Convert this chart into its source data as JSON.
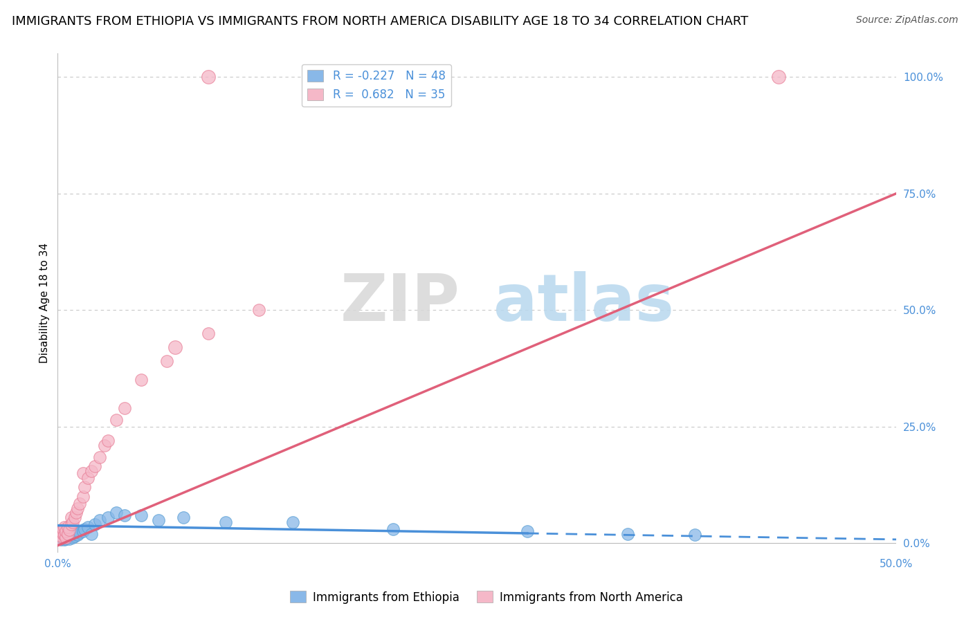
{
  "title": "IMMIGRANTS FROM ETHIOPIA VS IMMIGRANTS FROM NORTH AMERICA DISABILITY AGE 18 TO 34 CORRELATION CHART",
  "source": "Source: ZipAtlas.com",
  "ylabel": "Disability Age 18 to 34",
  "watermark_zip": "ZIP",
  "watermark_atlas": "atlas",
  "xlim": [
    0.0,
    0.5
  ],
  "ylim": [
    -0.02,
    1.05
  ],
  "yticks": [
    0.0,
    0.25,
    0.5,
    0.75,
    1.0
  ],
  "ytick_labels": [
    "0.0%",
    "25.0%",
    "50.0%",
    "75.0%",
    "100.0%"
  ],
  "xticks": [
    0.0,
    0.1,
    0.2,
    0.3,
    0.4,
    0.5
  ],
  "xtick_labels": [
    "0.0%",
    "",
    "",
    "",
    "",
    "50.0%"
  ],
  "series1_name": "Immigrants from Ethiopia",
  "series1_color": "#89b8e8",
  "series1_border": "#5a9fd4",
  "series1_R": -0.227,
  "series1_N": 48,
  "series2_name": "Immigrants from North America",
  "series2_color": "#f5b8c8",
  "series2_border": "#e88098",
  "series2_R": 0.682,
  "series2_N": 35,
  "blue_x": [
    0.001,
    0.001,
    0.001,
    0.002,
    0.002,
    0.002,
    0.002,
    0.003,
    0.003,
    0.003,
    0.004,
    0.004,
    0.004,
    0.005,
    0.005,
    0.005,
    0.006,
    0.006,
    0.006,
    0.007,
    0.007,
    0.008,
    0.008,
    0.009,
    0.009,
    0.01,
    0.01,
    0.011,
    0.012,
    0.013,
    0.015,
    0.016,
    0.018,
    0.02,
    0.022,
    0.025,
    0.03,
    0.035,
    0.04,
    0.05,
    0.06,
    0.075,
    0.1,
    0.14,
    0.2,
    0.28,
    0.34,
    0.38
  ],
  "blue_y": [
    0.01,
    0.015,
    0.02,
    0.008,
    0.012,
    0.018,
    0.025,
    0.01,
    0.015,
    0.022,
    0.008,
    0.018,
    0.025,
    0.01,
    0.018,
    0.028,
    0.012,
    0.02,
    0.03,
    0.01,
    0.022,
    0.015,
    0.025,
    0.012,
    0.02,
    0.015,
    0.025,
    0.02,
    0.018,
    0.022,
    0.025,
    0.03,
    0.035,
    0.02,
    0.04,
    0.05,
    0.055,
    0.065,
    0.06,
    0.06,
    0.05,
    0.055,
    0.045,
    0.045,
    0.03,
    0.025,
    0.02,
    0.018
  ],
  "pink_x": [
    0.001,
    0.001,
    0.002,
    0.002,
    0.003,
    0.003,
    0.004,
    0.004,
    0.005,
    0.005,
    0.006,
    0.006,
    0.007,
    0.008,
    0.008,
    0.009,
    0.01,
    0.011,
    0.012,
    0.013,
    0.015,
    0.015,
    0.016,
    0.018,
    0.02,
    0.022,
    0.025,
    0.028,
    0.03,
    0.035,
    0.04,
    0.05,
    0.065,
    0.09,
    0.12
  ],
  "pink_y": [
    0.01,
    0.018,
    0.015,
    0.025,
    0.02,
    0.03,
    0.018,
    0.035,
    0.012,
    0.025,
    0.02,
    0.035,
    0.028,
    0.04,
    0.055,
    0.045,
    0.055,
    0.065,
    0.075,
    0.085,
    0.1,
    0.15,
    0.12,
    0.14,
    0.155,
    0.165,
    0.185,
    0.21,
    0.22,
    0.265,
    0.29,
    0.35,
    0.39,
    0.45,
    0.5
  ],
  "pink_outlier1_x": [
    0.07
  ],
  "pink_outlier1_y": [
    0.42
  ],
  "pink_outlier2_x": [
    0.09
  ],
  "pink_outlier2_y": [
    1.0
  ],
  "pink_outlier3_x": [
    0.43
  ],
  "pink_outlier3_y": [
    1.0
  ],
  "blue_trend_x0": 0.0,
  "blue_trend_y0": 0.038,
  "blue_trend_x1": 0.5,
  "blue_trend_y1": 0.008,
  "blue_solid_xend": 0.28,
  "pink_trend_x0": 0.0,
  "pink_trend_y0": -0.005,
  "pink_trend_x1": 0.5,
  "pink_trend_y1": 0.75,
  "background_color": "#ffffff",
  "grid_color": "#c8c8c8",
  "title_fontsize": 13,
  "axis_label_fontsize": 11,
  "tick_fontsize": 11,
  "tick_color": "#4a90d9",
  "legend_fontsize": 12
}
